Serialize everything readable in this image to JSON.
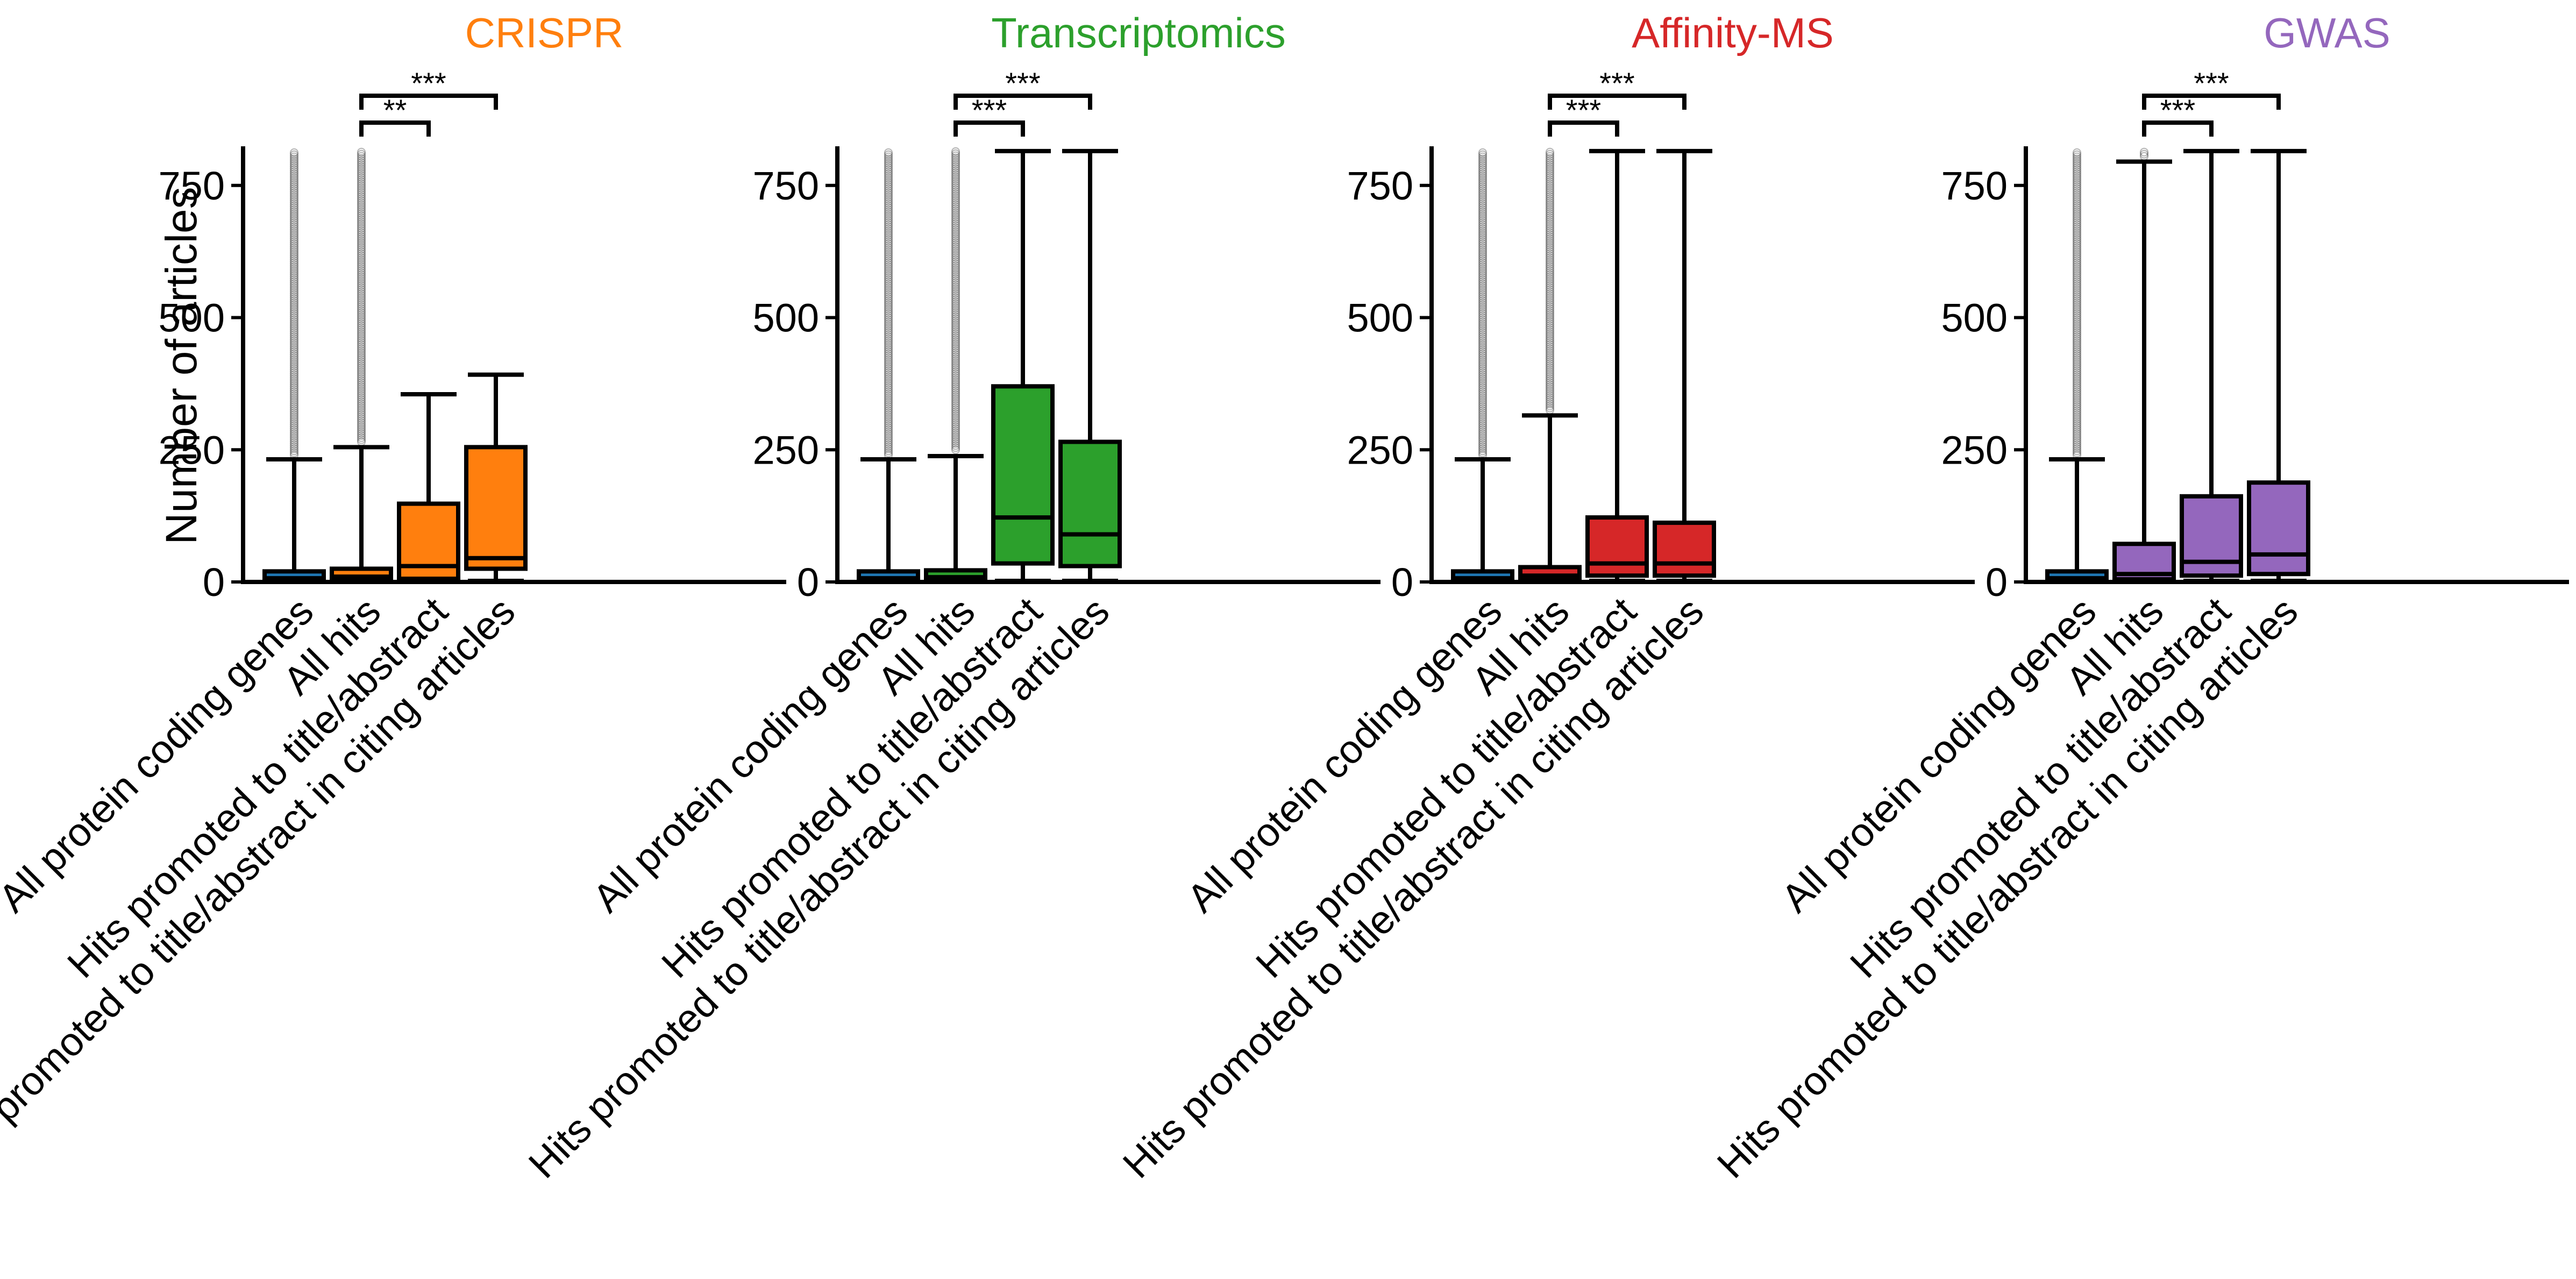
{
  "figure": {
    "ylabel": "Number of articles"
  },
  "chart_data": [
    {
      "type": "box",
      "title": "CRISPR",
      "ylabel": "Number of articles",
      "ylim": [
        0,
        820
      ],
      "yticks": [
        0,
        250,
        500,
        750
      ],
      "categories": [
        "All protein coding genes",
        "All hits",
        "Hits promoted to title/abstract",
        "Hits promoted to title/abstract in citing articles"
      ],
      "colors": [
        "#1f77b4",
        "#ff7f0e",
        "#ff7f0e",
        "#ff7f0e"
      ],
      "title_color": "#ff7f0e",
      "boxes": [
        {
          "whisker_low": 0,
          "q1": 2,
          "median": 7,
          "q3": 20,
          "whisker_high": 232,
          "outliers_from": 240
        },
        {
          "whisker_low": 0,
          "q1": 3,
          "median": 10,
          "q3": 25,
          "whisker_high": 255,
          "outliers_from": 265
        },
        {
          "whisker_low": 0,
          "q1": 6,
          "median": 30,
          "q3": 148,
          "whisker_high": 355,
          "outliers_from": null
        },
        {
          "whisker_low": 2,
          "q1": 25,
          "median": 45,
          "q3": 255,
          "whisker_high": 392,
          "outliers_from": null
        }
      ],
      "significance": [
        {
          "from": 1,
          "to": 2,
          "label": "**",
          "level": 1
        },
        {
          "from": 1,
          "to": 3,
          "label": "***",
          "level": 2
        }
      ]
    },
    {
      "type": "box",
      "title": "Transcriptomics",
      "ylim": [
        0,
        820
      ],
      "yticks": [
        0,
        250,
        500,
        750
      ],
      "categories": [
        "All protein coding genes",
        "All hits",
        "Hits promoted to title/abstract",
        "Hits promoted to title/abstract in citing articles"
      ],
      "colors": [
        "#1f77b4",
        "#2ca02c",
        "#2ca02c",
        "#2ca02c"
      ],
      "title_color": "#2ca02c",
      "boxes": [
        {
          "whisker_low": 0,
          "q1": 2,
          "median": 7,
          "q3": 20,
          "whisker_high": 232,
          "outliers_from": 240
        },
        {
          "whisker_low": 0,
          "q1": 3,
          "median": 9,
          "q3": 22,
          "whisker_high": 238,
          "outliers_from": 250
        },
        {
          "whisker_low": 2,
          "q1": 35,
          "median": 122,
          "q3": 370,
          "whisker_high": 815,
          "outliers_from": null
        },
        {
          "whisker_low": 2,
          "q1": 30,
          "median": 90,
          "q3": 265,
          "whisker_high": 815,
          "outliers_from": null
        }
      ],
      "significance": [
        {
          "from": 1,
          "to": 2,
          "label": "***",
          "level": 1
        },
        {
          "from": 1,
          "to": 3,
          "label": "***",
          "level": 2
        }
      ]
    },
    {
      "type": "box",
      "title": "Affinity-MS",
      "ylim": [
        0,
        820
      ],
      "yticks": [
        0,
        250,
        500,
        750
      ],
      "categories": [
        "All protein coding genes",
        "All hits",
        "Hits promoted to title/abstract",
        "Hits promoted to title/abstract in citing articles"
      ],
      "colors": [
        "#1f77b4",
        "#d62728",
        "#d62728",
        "#d62728"
      ],
      "title_color": "#d62728",
      "boxes": [
        {
          "whisker_low": 0,
          "q1": 2,
          "median": 7,
          "q3": 20,
          "whisker_high": 232,
          "outliers_from": 240
        },
        {
          "whisker_low": 0,
          "q1": 4,
          "median": 12,
          "q3": 28,
          "whisker_high": 315,
          "outliers_from": 325
        },
        {
          "whisker_low": 2,
          "q1": 12,
          "median": 35,
          "q3": 122,
          "whisker_high": 815,
          "outliers_from": null
        },
        {
          "whisker_low": 2,
          "q1": 12,
          "median": 35,
          "q3": 112,
          "whisker_high": 815,
          "outliers_from": null
        }
      ],
      "significance": [
        {
          "from": 1,
          "to": 2,
          "label": "***",
          "level": 1
        },
        {
          "from": 1,
          "to": 3,
          "label": "***",
          "level": 2
        }
      ]
    },
    {
      "type": "box",
      "title": "GWAS",
      "ylim": [
        0,
        820
      ],
      "yticks": [
        0,
        250,
        500,
        750
      ],
      "categories": [
        "All protein coding genes",
        "All hits",
        "Hits promoted to title/abstract",
        "Hits promoted to title/abstract in citing articles"
      ],
      "colors": [
        "#1f77b4",
        "#9467bd",
        "#9467bd",
        "#9467bd"
      ],
      "title_color": "#9467bd",
      "boxes": [
        {
          "whisker_low": 0,
          "q1": 2,
          "median": 7,
          "q3": 20,
          "whisker_high": 232,
          "outliers_from": 240
        },
        {
          "whisker_low": 0,
          "q1": 5,
          "median": 15,
          "q3": 72,
          "whisker_high": 795,
          "outliers_from": 805
        },
        {
          "whisker_low": 2,
          "q1": 12,
          "median": 38,
          "q3": 162,
          "whisker_high": 815,
          "outliers_from": null
        },
        {
          "whisker_low": 2,
          "q1": 15,
          "median": 52,
          "q3": 188,
          "whisker_high": 815,
          "outliers_from": null
        }
      ],
      "significance": [
        {
          "from": 1,
          "to": 2,
          "label": "***",
          "level": 1
        },
        {
          "from": 1,
          "to": 3,
          "label": "***",
          "level": 2
        }
      ]
    }
  ]
}
